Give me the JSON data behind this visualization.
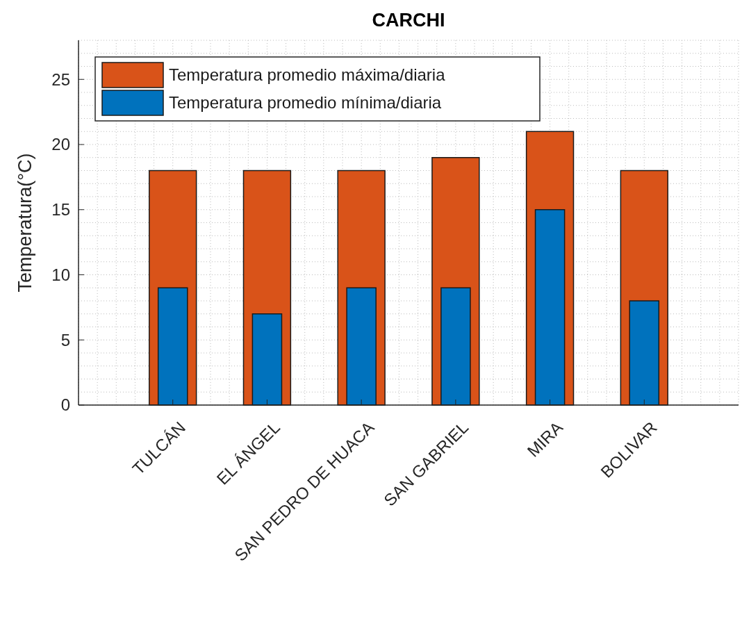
{
  "chart_data": {
    "type": "bar",
    "title": "CARCHI",
    "ylabel": "Temperatura(°C)",
    "categories": [
      "TULCÁN",
      "EL ÁNGEL",
      "SAN PEDRO DE HUACA",
      "SAN GABRIEL",
      "MIRA",
      "BOLIVAR"
    ],
    "series": [
      {
        "name": "Temperatura promedio máxima/diaria",
        "color": "#d95319",
        "values": [
          18,
          18,
          18,
          19,
          21,
          18
        ]
      },
      {
        "name": "Temperatura promedio mínima/diaria",
        "color": "#0072bd",
        "values": [
          9,
          7,
          9,
          9,
          15,
          8
        ]
      }
    ],
    "ylim": [
      0,
      28
    ],
    "yticks": [
      0,
      5,
      10,
      15,
      20,
      25
    ],
    "grid": true,
    "legend": "top left"
  }
}
